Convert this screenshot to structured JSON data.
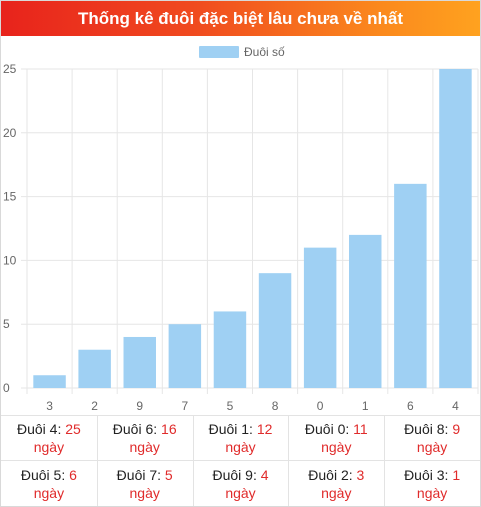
{
  "header": {
    "title": "Thống kê đuôi đặc biệt lâu chưa về nhất"
  },
  "colors": {
    "bar": "#9fd0f3",
    "grid": "#e6e6e6",
    "accent": "#e02b2b"
  },
  "chart_data": {
    "type": "bar",
    "categories": [
      "3",
      "2",
      "9",
      "7",
      "5",
      "8",
      "0",
      "1",
      "6",
      "4"
    ],
    "series": [
      {
        "name": "Đuôi số",
        "values": [
          1,
          3,
          4,
          5,
          6,
          9,
          11,
          12,
          16,
          25
        ]
      }
    ],
    "y_ticks": [
      "0",
      "5",
      "10",
      "15",
      "20",
      "25"
    ],
    "ylim": [
      0,
      25
    ],
    "legend": "top-center",
    "grid": true
  },
  "table": {
    "rows": [
      [
        {
          "label": "Đuôi 4:",
          "value": "25",
          "unit": "ngày"
        },
        {
          "label": "Đuôi 6:",
          "value": "16",
          "unit": "ngày"
        },
        {
          "label": "Đuôi 1:",
          "value": "12",
          "unit": "ngày"
        },
        {
          "label": "Đuôi 0:",
          "value": "11",
          "unit": "ngày"
        },
        {
          "label": "Đuôi 8:",
          "value": "9",
          "unit": "ngày"
        }
      ],
      [
        {
          "label": "Đuôi 5:",
          "value": "6",
          "unit": "ngày"
        },
        {
          "label": "Đuôi 7:",
          "value": "5",
          "unit": "ngày"
        },
        {
          "label": "Đuôi 9:",
          "value": "4",
          "unit": "ngày"
        },
        {
          "label": "Đuôi 2:",
          "value": "3",
          "unit": "ngày"
        },
        {
          "label": "Đuôi 3:",
          "value": "1",
          "unit": "ngày"
        }
      ]
    ]
  }
}
